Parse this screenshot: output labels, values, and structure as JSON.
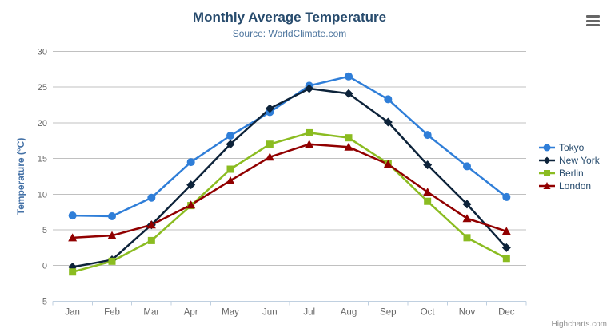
{
  "chart": {
    "credit_label": "Highcharts.com",
    "menu_icon": "hamburger-icon"
  },
  "chart_data": {
    "type": "line",
    "title": "Monthly Average Temperature",
    "subtitle": "Source: WorldClimate.com",
    "categories": [
      "Jan",
      "Feb",
      "Mar",
      "Apr",
      "May",
      "Jun",
      "Jul",
      "Aug",
      "Sep",
      "Oct",
      "Nov",
      "Dec"
    ],
    "series": [
      {
        "name": "Tokyo",
        "color": "#2f7ed8",
        "marker": "circle",
        "values": [
          7.0,
          6.9,
          9.5,
          14.5,
          18.2,
          21.5,
          25.2,
          26.5,
          23.3,
          18.3,
          13.9,
          9.6
        ]
      },
      {
        "name": "New York",
        "color": "#0d233a",
        "marker": "diamond",
        "values": [
          -0.2,
          0.8,
          5.7,
          11.3,
          17.0,
          22.0,
          24.8,
          24.1,
          20.1,
          14.1,
          8.6,
          2.5
        ]
      },
      {
        "name": "Berlin",
        "color": "#8bbc21",
        "marker": "square",
        "values": [
          -0.9,
          0.6,
          3.5,
          8.4,
          13.5,
          17.0,
          18.6,
          17.9,
          14.3,
          9.0,
          3.9,
          1.0
        ]
      },
      {
        "name": "London",
        "color": "#910000",
        "marker": "triangle",
        "values": [
          3.9,
          4.2,
          5.7,
          8.5,
          11.9,
          15.2,
          17.0,
          16.6,
          14.2,
          10.3,
          6.6,
          4.8
        ]
      }
    ],
    "xlabel": "",
    "ylabel": "Temperature (°C)",
    "ylim": [
      -5,
      30
    ],
    "ytick_step": 5,
    "grid": true,
    "legend_position": "right",
    "colors": {
      "title": "#274b6d",
      "subtitle": "#4d759e",
      "axis_label": "#666666",
      "axis_title": "#4572a7",
      "gridline": "#c0c0c0",
      "axis_line": "#c0d0e0",
      "legend_text": "#274b6d",
      "credit_text": "#909090",
      "menu_icon": "#666666"
    }
  }
}
